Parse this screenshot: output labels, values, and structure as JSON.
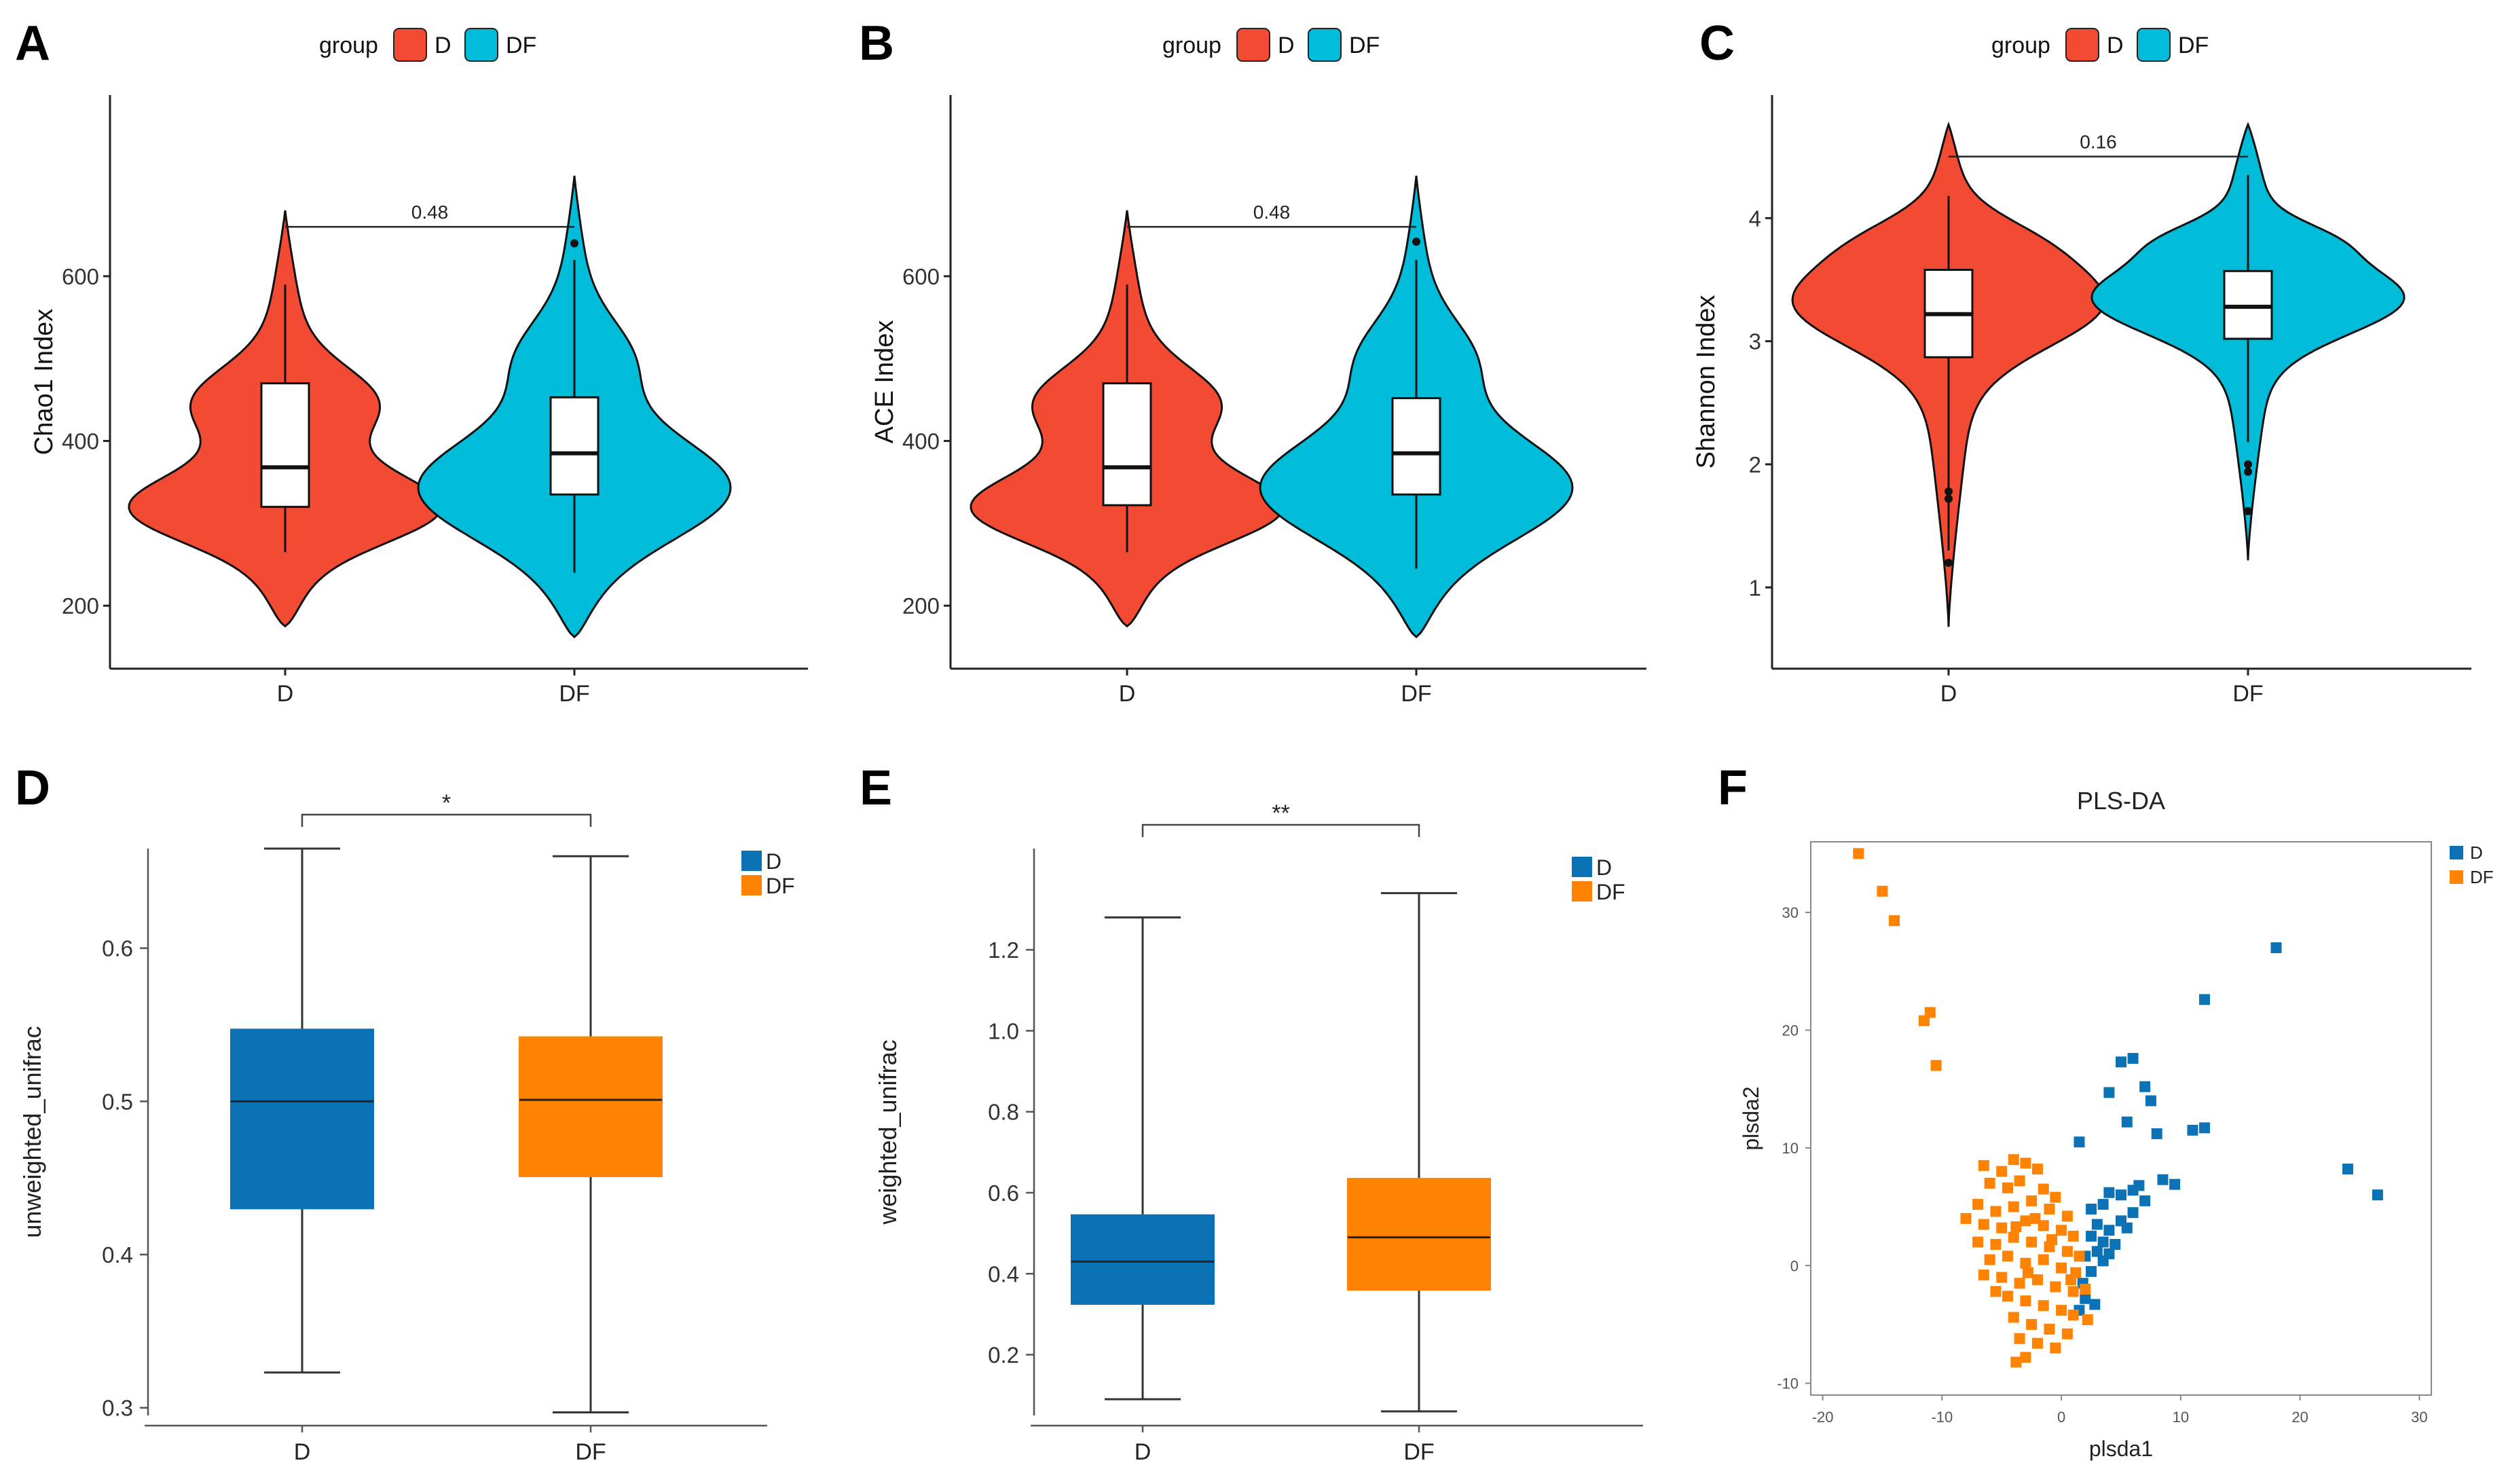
{
  "chart_data": [
    {
      "panel": "A",
      "type": "violin",
      "legend_title": "group",
      "groups": [
        "D",
        "DF"
      ],
      "colors": [
        "#F24A33",
        "#00BCD8"
      ],
      "ylabel": "Chao1 Index",
      "ylim": [
        140,
        820
      ],
      "yticks": [
        200,
        400,
        600
      ],
      "stats": [
        {
          "group": "D",
          "min": 265,
          "q1": 320,
          "median": 368,
          "q3": 470,
          "max": 590,
          "violin_min": 175,
          "violin_max": 680,
          "outliers": []
        },
        {
          "group": "DF",
          "min": 240,
          "q1": 335,
          "median": 385,
          "q3": 453,
          "max": 620,
          "violin_min": 162,
          "violin_max": 722,
          "outliers": [
            640
          ]
        }
      ],
      "comparison": {
        "label": "0.48",
        "y": 660
      }
    },
    {
      "panel": "B",
      "type": "violin",
      "legend_title": "group",
      "groups": [
        "D",
        "DF"
      ],
      "colors": [
        "#F24A33",
        "#00BCD8"
      ],
      "ylabel": "ACE Index",
      "ylim": [
        140,
        820
      ],
      "yticks": [
        200,
        400,
        600
      ],
      "stats": [
        {
          "group": "D",
          "min": 265,
          "q1": 322,
          "median": 368,
          "q3": 470,
          "max": 590,
          "violin_min": 175,
          "violin_max": 680,
          "outliers": []
        },
        {
          "group": "DF",
          "min": 245,
          "q1": 335,
          "median": 385,
          "q3": 452,
          "max": 620,
          "violin_min": 162,
          "violin_max": 722,
          "outliers": [
            642
          ]
        }
      ],
      "comparison": {
        "label": "0.48",
        "y": 660
      }
    },
    {
      "panel": "C",
      "type": "violin",
      "legend_title": "group",
      "groups": [
        "D",
        "DF"
      ],
      "colors": [
        "#F24A33",
        "#00BCD8"
      ],
      "ylabel": "Shannon Index",
      "ylim": [
        0.45,
        5.0
      ],
      "yticks": [
        1,
        2,
        3,
        4
      ],
      "stats": [
        {
          "group": "D",
          "min": 1.3,
          "q1": 2.87,
          "median": 3.22,
          "q3": 3.58,
          "max": 4.18,
          "violin_min": 0.68,
          "violin_max": 4.76,
          "outliers": [
            1.2,
            1.72,
            1.78
          ]
        },
        {
          "group": "DF",
          "min": 2.18,
          "q1": 3.02,
          "median": 3.28,
          "q3": 3.57,
          "max": 4.35,
          "violin_min": 1.22,
          "violin_max": 4.76,
          "outliers": [
            1.62,
            1.94,
            2.0
          ]
        }
      ],
      "comparison": {
        "label": "0.16",
        "y": 4.5
      }
    },
    {
      "panel": "D",
      "type": "box",
      "groups": [
        "D",
        "DF"
      ],
      "colors": [
        "#0A72B5",
        "#FF8200"
      ],
      "ylabel": "unweighted_unifrac",
      "ylim": [
        0.295,
        0.665
      ],
      "yticks": [
        0.3,
        0.4,
        0.5,
        0.6
      ],
      "stats": [
        {
          "group": "D",
          "min": 0.323,
          "q1": 0.43,
          "median": 0.5,
          "q3": 0.547,
          "max": 0.665
        },
        {
          "group": "DF",
          "min": 0.297,
          "q1": 0.451,
          "median": 0.501,
          "q3": 0.542,
          "max": 0.66
        }
      ],
      "significance": "*"
    },
    {
      "panel": "E",
      "type": "box",
      "groups": [
        "D",
        "DF"
      ],
      "colors": [
        "#0A72B5",
        "#FF8200"
      ],
      "ylabel": "weighted_unifrac",
      "ylim": [
        0.05,
        1.45
      ],
      "yticks": [
        0.2,
        0.4,
        0.6,
        0.8,
        1.0,
        1.2
      ],
      "stats": [
        {
          "group": "D",
          "min": 0.09,
          "q1": 0.325,
          "median": 0.43,
          "q3": 0.545,
          "max": 1.28
        },
        {
          "group": "DF",
          "min": 0.06,
          "q1": 0.36,
          "median": 0.49,
          "q3": 0.635,
          "max": 1.34
        }
      ],
      "significance": "**"
    },
    {
      "panel": "F",
      "type": "scatter",
      "title": "PLS-DA",
      "xlabel": "plsda1",
      "ylabel": "plsda2",
      "xlim": [
        -21,
        31
      ],
      "ylim": [
        -11,
        36
      ],
      "xticks": [
        -20,
        -10,
        0,
        10,
        20,
        30
      ],
      "yticks": [
        -10,
        0,
        10,
        20,
        30
      ],
      "series": [
        {
          "name": "D",
          "color": "#0A72B5",
          "points": [
            [
              18,
              27
            ],
            [
              12,
              22.6
            ],
            [
              5,
              17.3
            ],
            [
              6,
              17.6
            ],
            [
              7,
              15.2
            ],
            [
              4,
              14.7
            ],
            [
              7.5,
              14
            ],
            [
              5.5,
              12.2
            ],
            [
              1.5,
              10.5
            ],
            [
              8,
              11.2
            ],
            [
              11,
              11.5
            ],
            [
              12,
              11.7
            ],
            [
              24,
              8.2
            ],
            [
              26.5,
              6
            ],
            [
              2.5,
              4.8
            ],
            [
              3.5,
              5.2
            ],
            [
              4,
              6.2
            ],
            [
              5,
              6
            ],
            [
              6,
              6.4
            ],
            [
              6.5,
              6.8
            ],
            [
              7,
              5.5
            ],
            [
              8.5,
              7.3
            ],
            [
              9.5,
              6.9
            ],
            [
              3,
              3.5
            ],
            [
              4,
              3
            ],
            [
              5,
              3.8
            ],
            [
              2.5,
              2.5
            ],
            [
              3.5,
              2
            ],
            [
              4.5,
              1.8
            ],
            [
              5.5,
              3.2
            ],
            [
              3,
              1.2
            ],
            [
              2,
              0.8
            ],
            [
              2.5,
              -0.5
            ],
            [
              3.5,
              0.4
            ],
            [
              1.8,
              -1.5
            ],
            [
              2,
              -2.8
            ],
            [
              2.8,
              -3.3
            ],
            [
              1.5,
              -3.8
            ],
            [
              4,
              1
            ],
            [
              6,
              4.5
            ]
          ]
        },
        {
          "name": "DF",
          "color": "#FF8200",
          "points": [
            [
              -17,
              35
            ],
            [
              -15,
              31.8
            ],
            [
              -14,
              29.3
            ],
            [
              -11,
              21.5
            ],
            [
              -11.5,
              20.8
            ],
            [
              -10.5,
              17
            ],
            [
              -6.5,
              8.5
            ],
            [
              -5,
              8
            ],
            [
              -4,
              9
            ],
            [
              -3,
              8.7
            ],
            [
              -2,
              8.2
            ],
            [
              -6,
              7
            ],
            [
              -4.5,
              6.6
            ],
            [
              -3.5,
              7.2
            ],
            [
              -1.5,
              6.5
            ],
            [
              -0.5,
              5.8
            ],
            [
              -7,
              5.2
            ],
            [
              -5.5,
              4.6
            ],
            [
              -4,
              5
            ],
            [
              -2.5,
              5.5
            ],
            [
              -1,
              4.8
            ],
            [
              0.5,
              4.2
            ],
            [
              -8,
              4
            ],
            [
              -6.5,
              3.5
            ],
            [
              -5,
              3.2
            ],
            [
              -3,
              3.8
            ],
            [
              -1.5,
              3.4
            ],
            [
              0,
              3
            ],
            [
              1,
              2.5
            ],
            [
              -7,
              2
            ],
            [
              -5.5,
              1.8
            ],
            [
              -4,
              2.4
            ],
            [
              -2.5,
              2
            ],
            [
              -1,
              1.6
            ],
            [
              0.5,
              1.2
            ],
            [
              1.5,
              0.8
            ],
            [
              -6,
              0.5
            ],
            [
              -4.5,
              0.8
            ],
            [
              -3,
              0.2
            ],
            [
              -1.5,
              0.5
            ],
            [
              0,
              -0.2
            ],
            [
              1.2,
              -0.6
            ],
            [
              -5,
              -1
            ],
            [
              -3.5,
              -1.5
            ],
            [
              -2,
              -1.2
            ],
            [
              -0.5,
              -1.8
            ],
            [
              1,
              -2.2
            ],
            [
              2,
              -2
            ],
            [
              -4.5,
              -2.6
            ],
            [
              -3,
              -3
            ],
            [
              -1.5,
              -3.4
            ],
            [
              0,
              -3.8
            ],
            [
              1,
              -4.2
            ],
            [
              2.2,
              -4.6
            ],
            [
              -4,
              -4.4
            ],
            [
              -2.5,
              -5
            ],
            [
              -1,
              -5.4
            ],
            [
              0.5,
              -5.8
            ],
            [
              -3.5,
              -6.2
            ],
            [
              -2,
              -6.6
            ],
            [
              -0.5,
              -7
            ],
            [
              -3,
              -7.8
            ],
            [
              -3.8,
              -8.2
            ],
            [
              -5.5,
              -2.2
            ],
            [
              -6.5,
              -0.8
            ],
            [
              -2.2,
              4
            ],
            [
              -3.8,
              3.3
            ],
            [
              -0.8,
              2.2
            ],
            [
              -2.8,
              -0.6
            ],
            [
              0.8,
              -1.2
            ]
          ]
        }
      ]
    }
  ]
}
